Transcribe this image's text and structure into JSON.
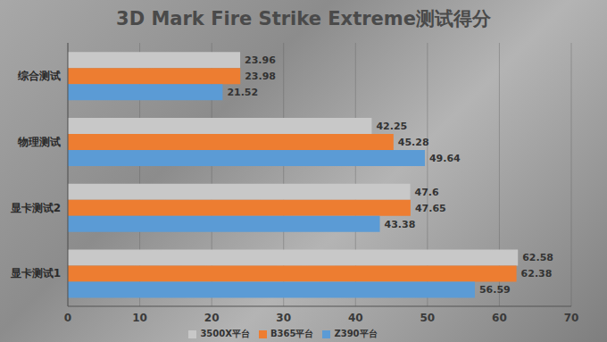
{
  "chart_data": {
    "type": "bar",
    "title": "3D Mark Fire Strike Extreme测试得分",
    "orientation": "horizontal",
    "categories": [
      "综合测试",
      "物理测试",
      "显卡测试2",
      "显卡测试1"
    ],
    "series": [
      {
        "name": "3500X平台",
        "color": "#c8c8c8",
        "values": [
          23.96,
          42.25,
          47.6,
          62.58
        ]
      },
      {
        "name": "B365平台",
        "color": "#ed7d31",
        "values": [
          23.98,
          45.28,
          47.65,
          62.38
        ]
      },
      {
        "name": "Z390平台",
        "color": "#5b9bd5",
        "values": [
          21.52,
          49.64,
          43.38,
          56.59
        ]
      }
    ],
    "xlim": [
      0,
      70
    ],
    "xticks": [
      0,
      10,
      20,
      30,
      40,
      50,
      60,
      70
    ],
    "grid": true,
    "data_labels": true,
    "legend": "bottom"
  }
}
